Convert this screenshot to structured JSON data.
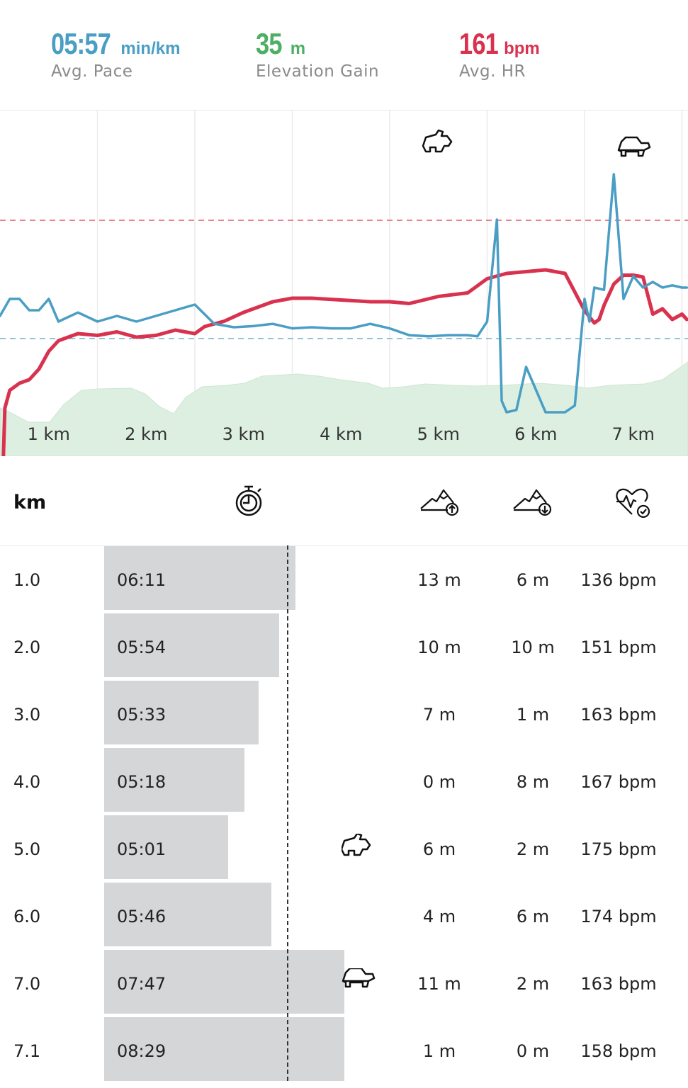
{
  "summary": {
    "pace": {
      "value": "05:57",
      "unit": "min/km",
      "label": "Avg. Pace",
      "color": "#4a9ec4"
    },
    "elevation": {
      "value": "35",
      "unit": "m",
      "label": "Elevation Gain",
      "color": "#4caf63"
    },
    "hr": {
      "value": "161",
      "unit": "bpm",
      "label": "Avg. HR",
      "color": "#d8324e"
    }
  },
  "chart_data": {
    "type": "line",
    "x_tick_labels": [
      "1 km",
      "2 km",
      "3 km",
      "4 km",
      "5 km",
      "6 km",
      "7 km"
    ],
    "xlim": [
      0,
      7.05
    ],
    "series": [
      {
        "color": "#d8324e",
        "x": [
          0,
          0.05,
          0.1,
          0.2,
          0.3,
          0.4,
          0.5,
          0.6,
          0.8,
          1.0,
          1.2,
          1.4,
          1.6,
          1.8,
          2.0,
          2.1,
          2.3,
          2.5,
          2.8,
          3.0,
          3.2,
          3.5,
          3.8,
          4.0,
          4.2,
          4.5,
          4.8,
          5.0,
          5.2,
          5.4,
          5.6,
          5.8,
          6.0,
          6.1,
          6.15,
          6.2,
          6.3,
          6.4,
          6.5,
          6.6,
          6.7,
          6.8,
          6.9,
          7.0,
          7.05
        ],
        "y": [
          0,
          90,
          100,
          104,
          106,
          112,
          122,
          128,
          132,
          131,
          133,
          130,
          131,
          134,
          132,
          136,
          139,
          144,
          150,
          152,
          152,
          151,
          150,
          150,
          149,
          153,
          155,
          163,
          166,
          167,
          168,
          166,
          145,
          138,
          140,
          148,
          160,
          165,
          165,
          164,
          143,
          146,
          140,
          143,
          140
        ]
      },
      {
        "color": "#4a9ec4",
        "x": [
          0,
          0.1,
          0.2,
          0.3,
          0.4,
          0.5,
          0.6,
          0.8,
          1.0,
          1.2,
          1.4,
          1.6,
          1.8,
          2.0,
          2.2,
          2.4,
          2.6,
          2.8,
          3.0,
          3.2,
          3.4,
          3.6,
          3.8,
          4.0,
          4.2,
          4.4,
          4.6,
          4.8,
          4.9,
          5.0,
          5.1,
          5.15,
          5.2,
          5.3,
          5.4,
          5.6,
          5.8,
          5.9,
          6.0,
          6.05,
          6.1,
          6.2,
          6.3,
          6.4,
          6.5,
          6.6,
          6.7,
          6.8,
          6.9,
          7.0,
          7.05
        ],
        "y": [
          5.75,
          5.6,
          5.6,
          5.7,
          5.7,
          5.6,
          5.8,
          5.72,
          5.8,
          5.75,
          5.8,
          5.75,
          5.7,
          5.65,
          5.82,
          5.85,
          5.84,
          5.82,
          5.86,
          5.85,
          5.86,
          5.86,
          5.82,
          5.86,
          5.92,
          5.93,
          5.92,
          5.92,
          5.93,
          5.8,
          4.9,
          6.5,
          6.6,
          6.58,
          6.2,
          6.6,
          6.6,
          6.54,
          5.6,
          5.8,
          5.5,
          5.52,
          4.5,
          5.6,
          5.4,
          5.5,
          5.45,
          5.5,
          5.48,
          5.5,
          5.5
        ]
      }
    ]
  },
  "table": {
    "km_label": "km",
    "rows": [
      {
        "km": "1.0",
        "pace": "06:11",
        "pace_min": 6.18,
        "up": "13 m",
        "down": "6 m",
        "hr": "136 bpm",
        "marker": ""
      },
      {
        "km": "2.0",
        "pace": "05:54",
        "pace_min": 5.9,
        "up": "10 m",
        "down": "10 m",
        "hr": "151 bpm",
        "marker": ""
      },
      {
        "km": "3.0",
        "pace": "05:33",
        "pace_min": 5.55,
        "up": "7 m",
        "down": "1 m",
        "hr": "163 bpm",
        "marker": ""
      },
      {
        "km": "4.0",
        "pace": "05:18",
        "pace_min": 5.3,
        "up": "0 m",
        "down": "8 m",
        "hr": "167 bpm",
        "marker": ""
      },
      {
        "km": "5.0",
        "pace": "05:01",
        "pace_min": 5.02,
        "up": "6 m",
        "down": "2 m",
        "hr": "175 bpm",
        "marker": "rabbit-icon"
      },
      {
        "km": "6.0",
        "pace": "05:46",
        "pace_min": 5.77,
        "up": "4 m",
        "down": "6 m",
        "hr": "174 bpm",
        "marker": ""
      },
      {
        "km": "7.0",
        "pace": "07:47",
        "pace_min": 7.78,
        "up": "11 m",
        "down": "2 m",
        "hr": "163 bpm",
        "marker": "turtle-icon"
      },
      {
        "km": "7.1",
        "pace": "08:29",
        "pace_min": 8.48,
        "up": "1 m",
        "down": "0 m",
        "hr": "158 bpm",
        "marker": ""
      }
    ]
  }
}
